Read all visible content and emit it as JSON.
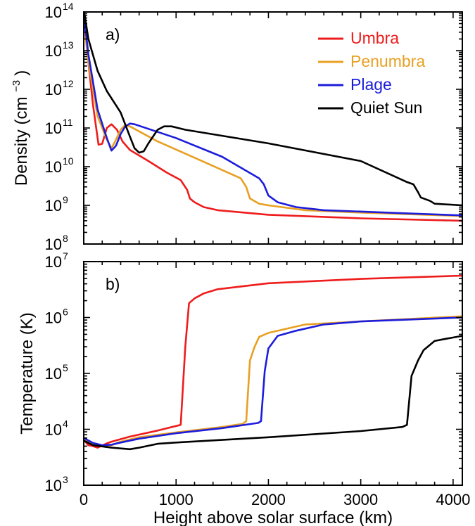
{
  "chart_data": [
    {
      "type": "line",
      "panel_label": "a)",
      "title": "",
      "xlabel": "",
      "ylabel_main": "Density (cm",
      "ylabel_exp": "−3",
      "ylabel_close": ")",
      "yscale": "log",
      "xlim": [
        0,
        4100
      ],
      "ylim": [
        100000000,
        100000000000000
      ],
      "grid": false,
      "legend_position": "top-right",
      "x_ticks": [
        "0",
        "1000",
        "2000",
        "3000",
        "4000"
      ],
      "y_ticks": [
        {
          "base": "10",
          "exp": "8"
        },
        {
          "base": "10",
          "exp": "9"
        },
        {
          "base": "10",
          "exp": "10"
        },
        {
          "base": "10",
          "exp": "11"
        },
        {
          "base": "10",
          "exp": "12"
        },
        {
          "base": "10",
          "exp": "13"
        },
        {
          "base": "10",
          "exp": "14"
        }
      ],
      "series": [
        {
          "name": "Umbra",
          "color": "#ee1c1c",
          "points": [
            [
              0,
              70000000000000.0
            ],
            [
              50,
              5000000000000.0
            ],
            [
              100,
              400000000000.0
            ],
            [
              160,
              37000000000.0
            ],
            [
              200,
              39000000000.0
            ],
            [
              250,
              100000000000.0
            ],
            [
              300,
              125000000000.0
            ],
            [
              360,
              90000000000.0
            ],
            [
              420,
              45000000000.0
            ],
            [
              500,
              27000000000.0
            ],
            [
              700,
              14000000000.0
            ],
            [
              900,
              7000000000.0
            ],
            [
              1050,
              4500000000.0
            ],
            [
              1120,
              2500000000.0
            ],
            [
              1150,
              1500000000.0
            ],
            [
              1200,
              1200000000.0
            ],
            [
              1300,
              900000000.0
            ],
            [
              1450,
              750000000.0
            ],
            [
              2000,
              570000000.0
            ],
            [
              3000,
              460000000.0
            ],
            [
              4100,
              400000000.0
            ]
          ]
        },
        {
          "name": "Penumbra",
          "color": "#e8a023",
          "points": [
            [
              0,
              70000000000000.0
            ],
            [
              50,
              5000000000000.0
            ],
            [
              150,
              200000000000.0
            ],
            [
              250,
              50000000000.0
            ],
            [
              300,
              30000000000.0
            ],
            [
              340,
              45000000000.0
            ],
            [
              400,
              90000000000.0
            ],
            [
              450,
              120000000000.0
            ],
            [
              500,
              110000000000.0
            ],
            [
              800,
              45000000000.0
            ],
            [
              1200,
              17000000000.0
            ],
            [
              1700,
              5000000000.0
            ],
            [
              1760,
              3000000000.0
            ],
            [
              1800,
              1500000000.0
            ],
            [
              1900,
              1100000000.0
            ],
            [
              2000,
              1000000000.0
            ],
            [
              2400,
              750000000.0
            ],
            [
              3000,
              650000000.0
            ],
            [
              4100,
              530000000.0
            ]
          ]
        },
        {
          "name": "Plage",
          "color": "#1c1cdc",
          "points": [
            [
              0,
              90000000000000.0
            ],
            [
              50,
              8000000000000.0
            ],
            [
              150,
              300000000000.0
            ],
            [
              250,
              55000000000.0
            ],
            [
              300,
              26000000000.0
            ],
            [
              350,
              35000000000.0
            ],
            [
              400,
              70000000000.0
            ],
            [
              450,
              110000000000.0
            ],
            [
              500,
              130000000000.0
            ],
            [
              550,
              125000000000.0
            ],
            [
              1000,
              55000000000.0
            ],
            [
              1500,
              18000000000.0
            ],
            [
              1900,
              5000000000.0
            ],
            [
              1950,
              3500000000.0
            ],
            [
              2000,
              1800000000.0
            ],
            [
              2100,
              1200000000.0
            ],
            [
              2300,
              900000000.0
            ],
            [
              2600,
              750000000.0
            ],
            [
              3500,
              620000000.0
            ],
            [
              4100,
              550000000.0
            ]
          ]
        },
        {
          "name": "Quiet Sun",
          "color": "#000000",
          "points": [
            [
              0,
              120000000000000.0
            ],
            [
              50,
              20000000000000.0
            ],
            [
              150,
              3000000000000.0
            ],
            [
              250,
              900000000000.0
            ],
            [
              400,
              250000000000.0
            ],
            [
              500,
              60000000000.0
            ],
            [
              550,
              30000000000.0
            ],
            [
              600,
              23000000000.0
            ],
            [
              650,
              25000000000.0
            ],
            [
              700,
              40000000000.0
            ],
            [
              800,
              90000000000.0
            ],
            [
              870,
              110000000000.0
            ],
            [
              950,
              110000000000.0
            ],
            [
              1100,
              90000000000.0
            ],
            [
              2000,
              40000000000.0
            ],
            [
              3000,
              14000000000.0
            ],
            [
              3500,
              4000000000.0
            ],
            [
              3570,
              3500000000.0
            ],
            [
              3620,
              2200000000.0
            ],
            [
              3650,
              1600000000.0
            ],
            [
              3750,
              1300000000.0
            ],
            [
              3800,
              1100000000.0
            ],
            [
              4100,
              1000000000.0
            ]
          ]
        }
      ]
    },
    {
      "type": "line",
      "panel_label": "b)",
      "title": "",
      "xlabel": "Height above solar surface (km)",
      "ylabel": "Temperature (K)",
      "yscale": "log",
      "xlim": [
        0,
        4100
      ],
      "ylim": [
        1000,
        10000000
      ],
      "grid": false,
      "x_ticks": [
        "0",
        "1000",
        "2000",
        "3000",
        "4000"
      ],
      "y_ticks": [
        {
          "base": "10",
          "exp": "3"
        },
        {
          "base": "10",
          "exp": "4"
        },
        {
          "base": "10",
          "exp": "5"
        },
        {
          "base": "10",
          "exp": "6"
        },
        {
          "base": "10",
          "exp": "7"
        }
      ],
      "series": [
        {
          "name": "Umbra",
          "color": "#ee1c1c",
          "points": [
            [
              0,
              6500
            ],
            [
              50,
              5200
            ],
            [
              100,
              5000
            ],
            [
              150,
              4700
            ],
            [
              250,
              5600
            ],
            [
              300,
              6000
            ],
            [
              500,
              7400
            ],
            [
              800,
              9500
            ],
            [
              1050,
              12000
            ],
            [
              1100,
              300000
            ],
            [
              1140,
              1800000
            ],
            [
              1200,
              2200000
            ],
            [
              1300,
              2700000
            ],
            [
              1450,
              3200000
            ],
            [
              2000,
              4100000
            ],
            [
              3000,
              4900000
            ],
            [
              4100,
              5600000
            ]
          ]
        },
        {
          "name": "Penumbra",
          "color": "#e8a023",
          "points": [
            [
              0,
              6500
            ],
            [
              100,
              5500
            ],
            [
              200,
              5000
            ],
            [
              300,
              5200
            ],
            [
              400,
              6000
            ],
            [
              600,
              7200
            ],
            [
              1000,
              8800
            ],
            [
              1500,
              11000
            ],
            [
              1720,
              12500
            ],
            [
              1760,
              14000
            ],
            [
              1800,
              170000
            ],
            [
              1850,
              300000
            ],
            [
              1900,
              450000
            ],
            [
              2000,
              530000
            ],
            [
              2400,
              750000
            ],
            [
              3000,
              850000
            ],
            [
              4100,
              1050000
            ]
          ]
        },
        {
          "name": "Plage",
          "color": "#1c1cdc",
          "points": [
            [
              0,
              7000
            ],
            [
              100,
              5700
            ],
            [
              200,
              5200
            ],
            [
              300,
              5300
            ],
            [
              400,
              5800
            ],
            [
              600,
              6800
            ],
            [
              1000,
              8500
            ],
            [
              1500,
              10500
            ],
            [
              1890,
              13000
            ],
            [
              1920,
              14000
            ],
            [
              1960,
              110000
            ],
            [
              2000,
              280000
            ],
            [
              2100,
              470000
            ],
            [
              2300,
              580000
            ],
            [
              2600,
              750000
            ],
            [
              3000,
              850000
            ],
            [
              4100,
              1000000
            ]
          ]
        },
        {
          "name": "Quiet Sun",
          "color": "#000000",
          "points": [
            [
              0,
              6300
            ],
            [
              100,
              5200
            ],
            [
              300,
              4700
            ],
            [
              500,
              4400
            ],
            [
              600,
              4700
            ],
            [
              800,
              5500
            ],
            [
              1000,
              5800
            ],
            [
              2000,
              7200
            ],
            [
              3000,
              9300
            ],
            [
              3450,
              11000
            ],
            [
              3500,
              12000
            ],
            [
              3550,
              90000
            ],
            [
              3620,
              170000
            ],
            [
              3680,
              260000
            ],
            [
              3800,
              380000
            ],
            [
              3900,
              410000
            ],
            [
              4100,
              470000
            ]
          ]
        }
      ]
    }
  ]
}
